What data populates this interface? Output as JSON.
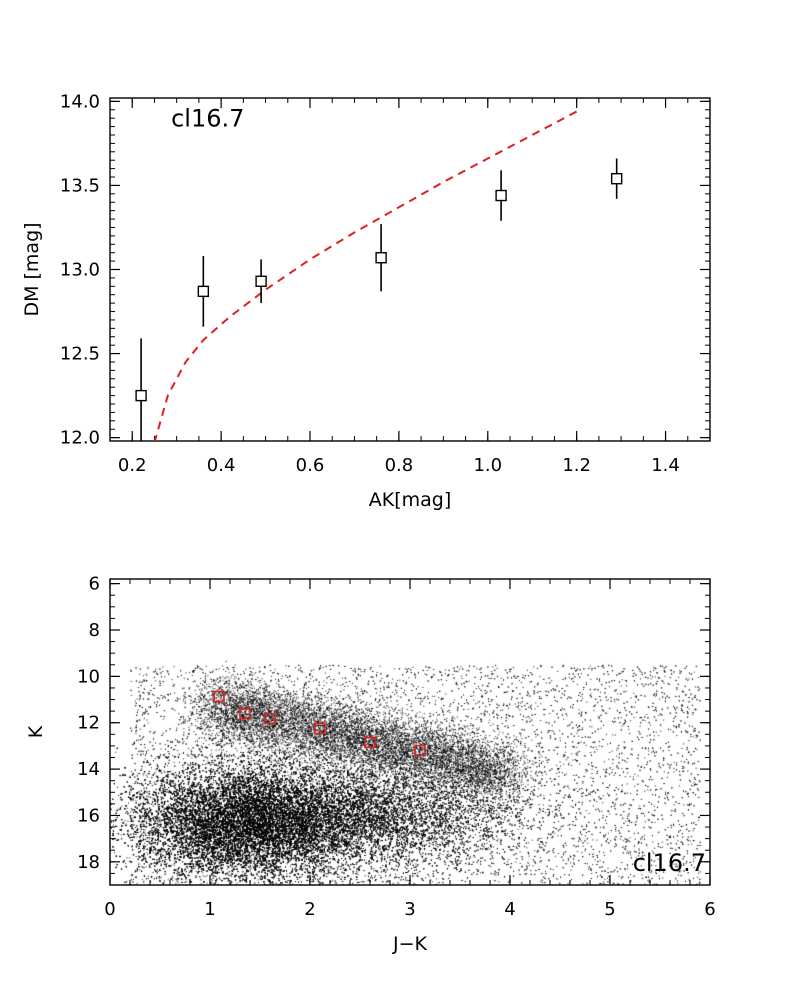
{
  "chart_data": [
    {
      "type": "scatter",
      "panel_label": "cl16.7",
      "xlabel": "AK[mag]",
      "ylabel": "DM [mag]",
      "xlim": [
        0.15,
        1.5
      ],
      "ylim": [
        11.98,
        14.02
      ],
      "xticks": [
        0.2,
        0.4,
        0.6,
        0.8,
        1.0,
        1.2,
        1.4
      ],
      "xtick_labels": [
        "0.2",
        "0.4",
        "0.6",
        "0.8",
        "1.0",
        "1.2",
        "1.4"
      ],
      "yticks": [
        12.0,
        12.5,
        13.0,
        13.5,
        14.0
      ],
      "ytick_labels": [
        "12.0",
        "12.5",
        "13.0",
        "13.5",
        "14.0"
      ],
      "grid": false,
      "series": [
        {
          "marker": "open-square",
          "color": "#000000",
          "points": [
            {
              "x": 0.22,
              "y": 12.25,
              "err_low": 0.28,
              "err_high": 0.34
            },
            {
              "x": 0.36,
              "y": 12.87,
              "err_low": 0.21,
              "err_high": 0.21
            },
            {
              "x": 0.49,
              "y": 12.93,
              "err_low": 0.13,
              "err_high": 0.13
            },
            {
              "x": 0.76,
              "y": 13.07,
              "err_low": 0.2,
              "err_high": 0.2
            },
            {
              "x": 1.03,
              "y": 13.44,
              "err_low": 0.15,
              "err_high": 0.15
            },
            {
              "x": 1.29,
              "y": 13.54,
              "err_low": 0.12,
              "err_high": 0.12
            }
          ]
        },
        {
          "style": "dashed-line",
          "color": "#dd2020",
          "x": [
            0.25,
            0.28,
            0.32,
            0.36,
            0.42,
            0.5,
            0.6,
            0.7,
            0.8,
            0.9,
            1.0,
            1.1,
            1.2
          ],
          "y": [
            11.97,
            12.25,
            12.45,
            12.58,
            12.72,
            12.88,
            13.06,
            13.22,
            13.37,
            13.52,
            13.66,
            13.8,
            13.94
          ]
        }
      ]
    },
    {
      "type": "scatter",
      "panel_label": "cl16.7",
      "xlabel": "J−K",
      "ylabel": "K",
      "xlim": [
        0,
        6
      ],
      "ylim": [
        19,
        5.8
      ],
      "y_inverted": true,
      "xticks": [
        0,
        1,
        2,
        3,
        4,
        5,
        6
      ],
      "xtick_labels": [
        "0",
        "1",
        "2",
        "3",
        "4",
        "5",
        "6"
      ],
      "yticks": [
        6,
        8,
        10,
        12,
        14,
        16,
        18
      ],
      "ytick_labels": [
        "6",
        "8",
        "10",
        "12",
        "14",
        "16",
        "18"
      ],
      "grid": false,
      "series": [
        {
          "style": "dense-point-cloud",
          "color": "#000000",
          "description_components": [
            {
              "center_jk": 1.3,
              "center_k": 16.3,
              "spread_jk": 0.55,
              "spread_k": 1.2,
              "weight": 0.45
            },
            {
              "center_jk": 2.4,
              "center_k": 16.0,
              "spread_jk": 0.8,
              "spread_k": 1.1,
              "weight": 0.25
            },
            {
              "ridge_from": [
                1.0,
                11.2
              ],
              "ridge_to": [
                4.0,
                14.2
              ],
              "width": 0.7,
              "weight": 0.15
            },
            {
              "uniform_jk": [
                0.2,
                5.9
              ],
              "uniform_k": [
                9.5,
                19.0
              ],
              "weight": 0.15
            }
          ]
        },
        {
          "marker": "open-square",
          "color": "#dd2020",
          "points": [
            {
              "x": 1.09,
              "y": 10.87
            },
            {
              "x": 1.35,
              "y": 11.6
            },
            {
              "x": 1.6,
              "y": 11.82
            },
            {
              "x": 2.1,
              "y": 12.25
            },
            {
              "x": 2.6,
              "y": 12.85
            },
            {
              "x": 3.1,
              "y": 13.2
            }
          ]
        }
      ]
    }
  ]
}
